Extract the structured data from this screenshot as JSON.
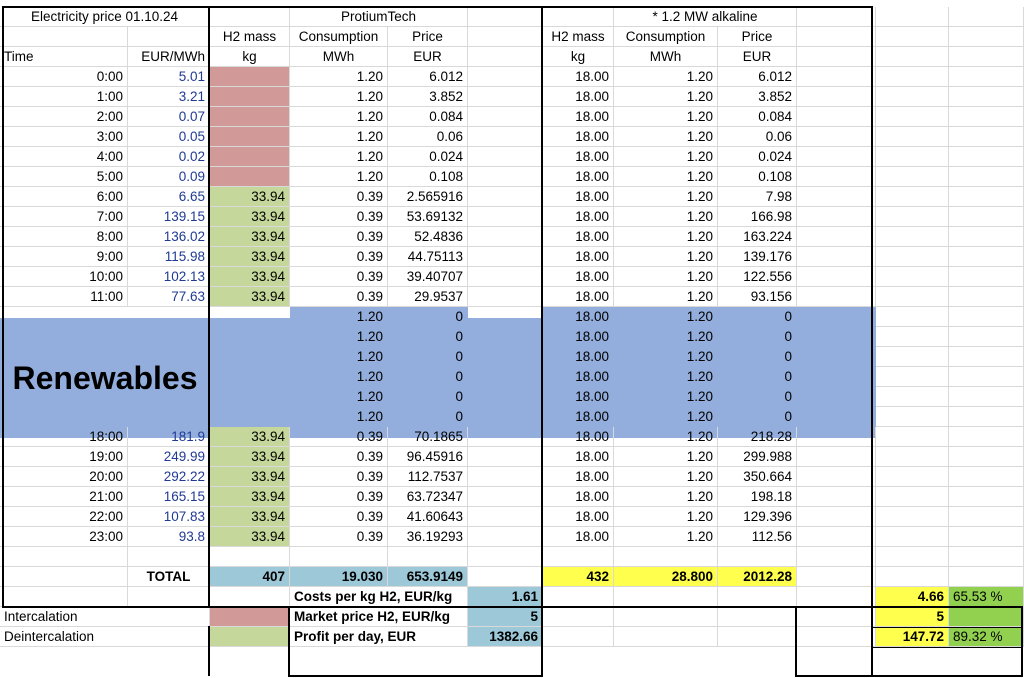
{
  "header": {
    "title_price": "Electricity price 01.10.24",
    "title_protium": "ProtiumTech",
    "title_alkaline": "* 1.2 MW alkaline",
    "h2_mass": "H2 mass",
    "consumption": "Consumption",
    "price": "Price",
    "time": "Time",
    "eur_mwh": "EUR/MWh",
    "kg": "kg",
    "mwh": "MWh",
    "eur": "EUR"
  },
  "rows_top": [
    {
      "time": "0:00",
      "price": "5.01",
      "h2": "",
      "cons": "1.20",
      "p_price": "6.012",
      "a_h2": "18.00",
      "a_cons": "1.20",
      "a_price": "6.012",
      "color": "pink"
    },
    {
      "time": "1:00",
      "price": "3.21",
      "h2": "",
      "cons": "1.20",
      "p_price": "3.852",
      "a_h2": "18.00",
      "a_cons": "1.20",
      "a_price": "3.852",
      "color": "pink"
    },
    {
      "time": "2:00",
      "price": "0.07",
      "h2": "",
      "cons": "1.20",
      "p_price": "0.084",
      "a_h2": "18.00",
      "a_cons": "1.20",
      "a_price": "0.084",
      "color": "pink"
    },
    {
      "time": "3:00",
      "price": "0.05",
      "h2": "",
      "cons": "1.20",
      "p_price": "0.06",
      "a_h2": "18.00",
      "a_cons": "1.20",
      "a_price": "0.06",
      "color": "pink"
    },
    {
      "time": "4:00",
      "price": "0.02",
      "h2": "",
      "cons": "1.20",
      "p_price": "0.024",
      "a_h2": "18.00",
      "a_cons": "1.20",
      "a_price": "0.024",
      "color": "pink"
    },
    {
      "time": "5:00",
      "price": "0.09",
      "h2": "",
      "cons": "1.20",
      "p_price": "0.108",
      "a_h2": "18.00",
      "a_cons": "1.20",
      "a_price": "0.108",
      "color": "pink"
    },
    {
      "time": "6:00",
      "price": "6.65",
      "h2": "33.94",
      "cons": "0.39",
      "p_price": "2.565916",
      "a_h2": "18.00",
      "a_cons": "1.20",
      "a_price": "7.98",
      "color": "green"
    },
    {
      "time": "7:00",
      "price": "139.15",
      "h2": "33.94",
      "cons": "0.39",
      "p_price": "53.69132",
      "a_h2": "18.00",
      "a_cons": "1.20",
      "a_price": "166.98",
      "color": "green"
    },
    {
      "time": "8:00",
      "price": "136.02",
      "h2": "33.94",
      "cons": "0.39",
      "p_price": "52.4836",
      "a_h2": "18.00",
      "a_cons": "1.20",
      "a_price": "163.224",
      "color": "green"
    },
    {
      "time": "9:00",
      "price": "115.98",
      "h2": "33.94",
      "cons": "0.39",
      "p_price": "44.75113",
      "a_h2": "18.00",
      "a_cons": "1.20",
      "a_price": "139.176",
      "color": "green"
    },
    {
      "time": "10:00",
      "price": "102.13",
      "h2": "33.94",
      "cons": "0.39",
      "p_price": "39.40707",
      "a_h2": "18.00",
      "a_cons": "1.20",
      "a_price": "122.556",
      "color": "green"
    },
    {
      "time": "11:00",
      "price": "77.63",
      "h2": "33.94",
      "cons": "0.39",
      "p_price": "29.9537",
      "a_h2": "18.00",
      "a_cons": "1.20",
      "a_price": "93.156",
      "color": "green"
    }
  ],
  "renewables_label": "Renewables",
  "rows_renew": [
    {
      "cons": "1.20",
      "p_price": "0",
      "a_h2": "18.00",
      "a_cons": "1.20",
      "a_price": "0"
    },
    {
      "cons": "1.20",
      "p_price": "0",
      "a_h2": "18.00",
      "a_cons": "1.20",
      "a_price": "0"
    },
    {
      "cons": "1.20",
      "p_price": "0",
      "a_h2": "18.00",
      "a_cons": "1.20",
      "a_price": "0"
    },
    {
      "cons": "1.20",
      "p_price": "0",
      "a_h2": "18.00",
      "a_cons": "1.20",
      "a_price": "0"
    },
    {
      "cons": "1.20",
      "p_price": "0",
      "a_h2": "18.00",
      "a_cons": "1.20",
      "a_price": "0"
    },
    {
      "cons": "1.20",
      "p_price": "0",
      "a_h2": "18.00",
      "a_cons": "1.20",
      "a_price": "0"
    }
  ],
  "rows_bottom": [
    {
      "time": "18:00",
      "price": "181.9",
      "h2": "33.94",
      "cons": "0.39",
      "p_price": "70.1865",
      "a_h2": "18.00",
      "a_cons": "1.20",
      "a_price": "218.28"
    },
    {
      "time": "19:00",
      "price": "249.99",
      "h2": "33.94",
      "cons": "0.39",
      "p_price": "96.45916",
      "a_h2": "18.00",
      "a_cons": "1.20",
      "a_price": "299.988"
    },
    {
      "time": "20:00",
      "price": "292.22",
      "h2": "33.94",
      "cons": "0.39",
      "p_price": "112.7537",
      "a_h2": "18.00",
      "a_cons": "1.20",
      "a_price": "350.664"
    },
    {
      "time": "21:00",
      "price": "165.15",
      "h2": "33.94",
      "cons": "0.39",
      "p_price": "63.72347",
      "a_h2": "18.00",
      "a_cons": "1.20",
      "a_price": "198.18"
    },
    {
      "time": "22:00",
      "price": "107.83",
      "h2": "33.94",
      "cons": "0.39",
      "p_price": "41.60643",
      "a_h2": "18.00",
      "a_cons": "1.20",
      "a_price": "129.396"
    },
    {
      "time": "23:00",
      "price": "93.8",
      "h2": "33.94",
      "cons": "0.39",
      "p_price": "36.19293",
      "a_h2": "18.00",
      "a_cons": "1.20",
      "a_price": "112.56"
    }
  ],
  "total": {
    "label": "TOTAL",
    "h2": "407",
    "cons": "19.030",
    "price": "653.9149",
    "a_h2": "432",
    "a_cons": "28.800",
    "a_price": "2012.28"
  },
  "summary": [
    {
      "label": "Costs per kg H2, EUR/kg",
      "value": "1.61",
      "a_value": "4.66",
      "pct": "65.53 %"
    },
    {
      "label": "Market price H2, EUR/kg",
      "value": "5",
      "a_value": "5",
      "pct": ""
    },
    {
      "label": "Profit per day, EUR",
      "value": "1382.66",
      "a_value": "147.72",
      "pct": "89.32 %"
    }
  ],
  "legend": {
    "intercalation": "Intercalation",
    "deintercalation": "Deintercalation"
  },
  "colors": {
    "pink": "#d19a98",
    "green": "#c5d79b",
    "light_blue": "#9dc8d8",
    "yellow": "#ffff4d",
    "bright_green": "#92d050",
    "renewables_blue": "#93aedd"
  }
}
